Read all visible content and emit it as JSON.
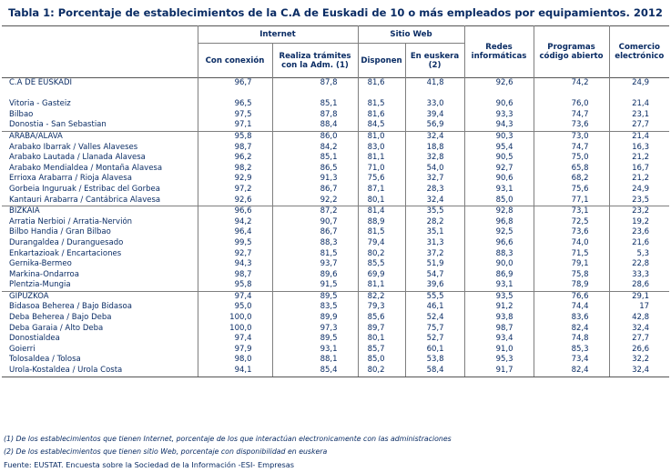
{
  "title": "Tabla 1: Porcentaje de establecimientos de la C.A de Euskadi de 10 o más empleados por equipamientos. 2012",
  "header": {
    "internet": "Internet",
    "sitio_web": "Sitio Web",
    "con_conexion": "Con conexión",
    "realiza_1": "Realiza trámites",
    "realiza_2": "con la Adm. (1)",
    "disponen": "Disponen",
    "euskera_1": "En euskera",
    "euskera_2": "(2)",
    "redes_1": "Redes",
    "redes_2": "informáticas",
    "prog_1": "Programas",
    "prog_2": "código abierto",
    "com_1": "Comercio",
    "com_2": "electrónico"
  },
  "rows": [
    {
      "label": "C.A DE EUSKADI",
      "v": [
        "96,7",
        "87,8",
        "81,6",
        "41,8",
        "92,6",
        "74,2",
        "24,9"
      ]
    },
    {
      "label": "Vitoria - Gasteiz",
      "v": [
        "96,5",
        "85,1",
        "81,5",
        "33,0",
        "90,6",
        "76,0",
        "21,4"
      ]
    },
    {
      "label": "Bilbao",
      "v": [
        "97,5",
        "87,8",
        "81,6",
        "39,4",
        "93,3",
        "74,7",
        "23,1"
      ]
    },
    {
      "label": "Donostia - San Sebastian",
      "v": [
        "97,1",
        "88,4",
        "84,5",
        "56,9",
        "94,3",
        "73,6",
        "27,7"
      ]
    },
    {
      "label": "ARABA/ÁLAVA",
      "v": [
        "95,8",
        "86,0",
        "81,0",
        "32,4",
        "90,3",
        "73,0",
        "21,4"
      ]
    },
    {
      "label": "Arabako Ibarrak / Valles Alaveses",
      "v": [
        "98,7",
        "84,2",
        "83,0",
        "18,8",
        "95,4",
        "74,7",
        "16,3"
      ]
    },
    {
      "label": "Arabako Lautada / Llanada Alavesa",
      "v": [
        "96,2",
        "85,1",
        "81,1",
        "32,8",
        "90,5",
        "75,0",
        "21,2"
      ]
    },
    {
      "label": "Arabako Mendialdea / Montaña Alavesa",
      "v": [
        "98,2",
        "86,5",
        "71,0",
        "54,0",
        "92,7",
        "65,8",
        "16,7"
      ]
    },
    {
      "label": "Errioxa Arabarra / Rioja Alavesa",
      "v": [
        "92,9",
        "91,3",
        "75,6",
        "32,7",
        "90,6",
        "68,2",
        "21,2"
      ]
    },
    {
      "label": "Gorbeia Inguruak / Estribac del Gorbea",
      "v": [
        "97,2",
        "86,7",
        "87,1",
        "28,3",
        "93,1",
        "75,6",
        "24,9"
      ]
    },
    {
      "label": "Kantauri Arabarra / Cantábrica Alavesa",
      "v": [
        "92,6",
        "92,2",
        "80,1",
        "32,4",
        "85,0",
        "77,1",
        "23,5"
      ]
    },
    {
      "label": "BIZKAIA",
      "v": [
        "96,6",
        "87,2",
        "81,4",
        "35,5",
        "92,8",
        "73,1",
        "23,2"
      ]
    },
    {
      "label": "Arratia Nerbioi / Arratia-Nervión",
      "v": [
        "94,2",
        "90,7",
        "88,9",
        "28,2",
        "96,8",
        "72,5",
        "19,2"
      ]
    },
    {
      "label": "Bilbo Handia / Gran Bilbao",
      "v": [
        "96,4",
        "86,7",
        "81,5",
        "35,1",
        "92,5",
        "73,6",
        "23,6"
      ]
    },
    {
      "label": "Durangaldea / Duranguesado",
      "v": [
        "99,5",
        "88,3",
        "79,4",
        "31,3",
        "96,6",
        "74,0",
        "21,6"
      ]
    },
    {
      "label": "Enkartazioak / Encartaciones",
      "v": [
        "92,7",
        "81,5",
        "80,2",
        "37,2",
        "88,3",
        "71,5",
        "5,3"
      ]
    },
    {
      "label": "Gernika-Bermeo",
      "v": [
        "94,3",
        "93,7",
        "85,5",
        "51,9",
        "90,0",
        "79,1",
        "22,8"
      ]
    },
    {
      "label": "Markina-Ondarroa",
      "v": [
        "98,7",
        "89,6",
        "69,9",
        "54,7",
        "86,9",
        "75,8",
        "33,3"
      ]
    },
    {
      "label": "Plentzia-Mungia",
      "v": [
        "95,8",
        "91,5",
        "81,1",
        "39,6",
        "93,1",
        "78,9",
        "28,6"
      ]
    },
    {
      "label": "GIPUZKOA",
      "v": [
        "97,4",
        "89,5",
        "82,2",
        "55,5",
        "93,5",
        "76,6",
        "29,1"
      ]
    },
    {
      "label": "Bidasoa Beherea / Bajo Bidasoa",
      "v": [
        "95,0",
        "83,5",
        "79,3",
        "46,1",
        "91,2",
        "74,4",
        "17"
      ]
    },
    {
      "label": "Deba Beherea / Bajo Deba",
      "v": [
        "100,0",
        "89,9",
        "85,6",
        "52,4",
        "93,8",
        "83,6",
        "42,8"
      ]
    },
    {
      "label": "Deba Garaia / Alto Deba",
      "v": [
        "100,0",
        "97,3",
        "89,7",
        "75,7",
        "98,7",
        "82,4",
        "32,4"
      ]
    },
    {
      "label": "Donostialdea",
      "v": [
        "97,4",
        "89,5",
        "80,1",
        "52,7",
        "93,4",
        "74,8",
        "27,7"
      ]
    },
    {
      "label": "Goierri",
      "v": [
        "97,9",
        "93,1",
        "85,7",
        "60,1",
        "91,0",
        "85,3",
        "26,6"
      ]
    },
    {
      "label": "Tolosaldea / Tolosa",
      "v": [
        "98,0",
        "88,1",
        "85,0",
        "53,8",
        "95,3",
        "73,4",
        "32,2"
      ]
    },
    {
      "label": "Urola-Kostaldea / Urola Costa",
      "v": [
        "94,1",
        "85,4",
        "80,2",
        "58,4",
        "91,7",
        "82,4",
        "32,4"
      ]
    }
  ],
  "notes": {
    "n1": "(1) De los establecimientos que tienen Internet, porcentaje de los que interactúan electronicamente con las administraciones",
    "n2": "(2) De los establecimientos que tienen sitio Web, porcentaje con disponibilidad en euskera",
    "source": "Fuente: EUSTAT. Encuesta sobre la Sociedad de la Información -ESI- Empresas"
  }
}
